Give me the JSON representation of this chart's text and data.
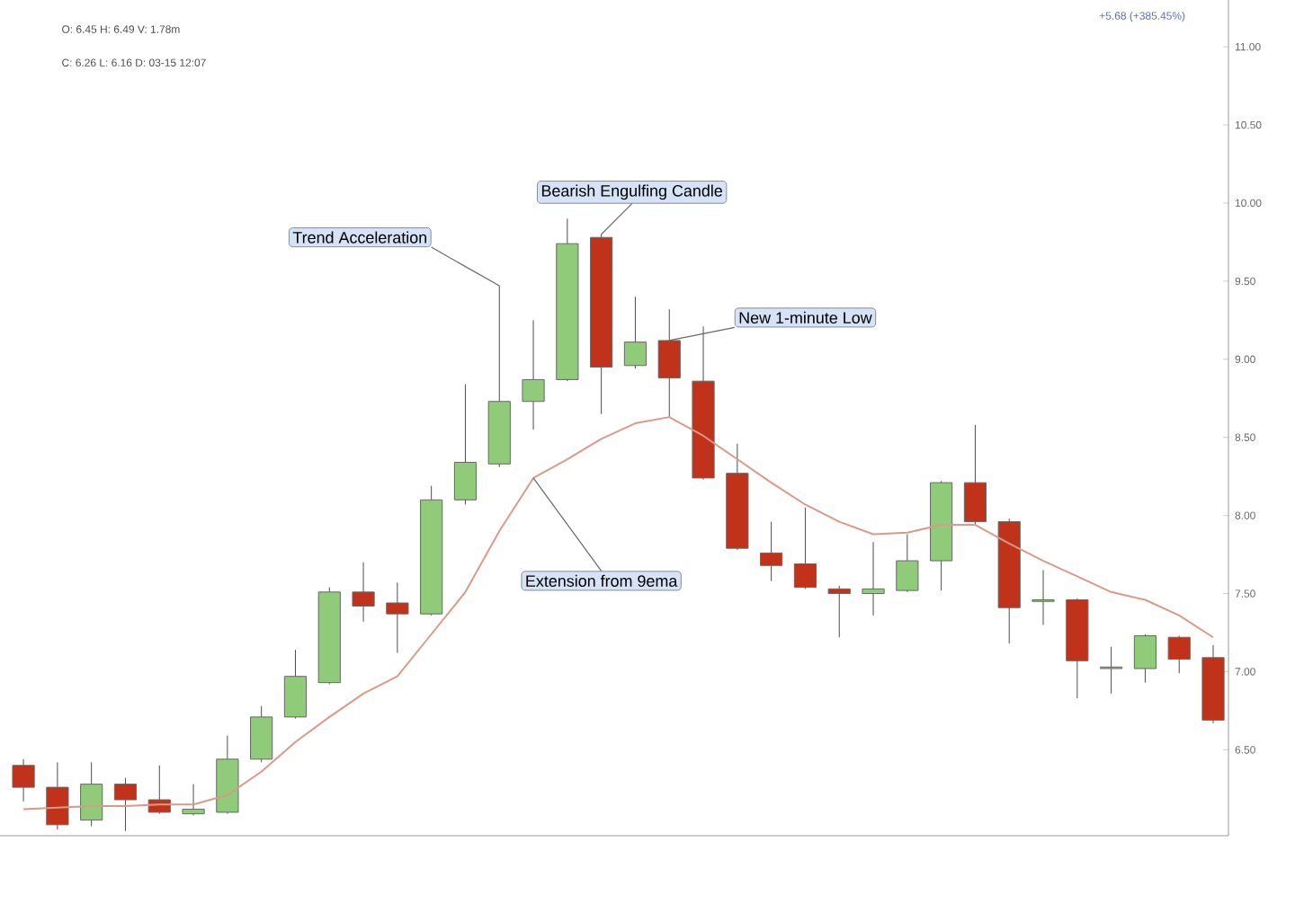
{
  "chart_data": {
    "type": "candlestick",
    "tick_labels": "y",
    "categories": [
      null,
      null,
      null,
      null,
      null,
      null,
      null,
      null,
      null,
      null,
      null,
      null,
      null,
      null,
      null,
      null,
      null,
      null,
      null,
      null,
      null,
      null,
      null,
      null,
      null,
      null,
      null,
      null,
      null,
      null,
      null,
      null,
      null,
      null,
      null,
      null
    ],
    "ohlc": [
      [
        6.4,
        6.44,
        6.17,
        6.26
      ],
      [
        6.26,
        6.42,
        5.99,
        6.02
      ],
      [
        6.05,
        6.42,
        6.01,
        6.28
      ],
      [
        6.28,
        6.32,
        5.98,
        6.18
      ],
      [
        6.18,
        6.4,
        6.09,
        6.1
      ],
      [
        6.09,
        6.28,
        6.08,
        6.12
      ],
      [
        6.1,
        6.59,
        6.09,
        6.44
      ],
      [
        6.44,
        6.78,
        6.42,
        6.71
      ],
      [
        6.71,
        7.14,
        6.7,
        6.97
      ],
      [
        6.93,
        7.54,
        6.92,
        7.51
      ],
      [
        7.51,
        7.7,
        7.32,
        7.42
      ],
      [
        7.44,
        7.57,
        7.12,
        7.37
      ],
      [
        7.37,
        8.19,
        7.36,
        8.1
      ],
      [
        8.1,
        8.84,
        8.07,
        8.34
      ],
      [
        8.33,
        9.47,
        8.31,
        8.73
      ],
      [
        8.73,
        9.25,
        8.55,
        8.87
      ],
      [
        8.87,
        9.9,
        8.86,
        9.74
      ],
      [
        9.78,
        9.8,
        8.65,
        8.95
      ],
      [
        8.96,
        9.4,
        8.94,
        9.11
      ],
      [
        9.12,
        9.32,
        8.63,
        8.88
      ],
      [
        8.86,
        9.21,
        8.23,
        8.24
      ],
      [
        8.27,
        8.46,
        7.78,
        7.79
      ],
      [
        7.76,
        7.96,
        7.58,
        7.68
      ],
      [
        7.69,
        8.05,
        7.53,
        7.54
      ],
      [
        7.53,
        7.55,
        7.22,
        7.5
      ],
      [
        7.5,
        7.83,
        7.36,
        7.53
      ],
      [
        7.52,
        7.88,
        7.51,
        7.71
      ],
      [
        7.71,
        8.22,
        7.52,
        8.21
      ],
      [
        8.21,
        8.58,
        7.94,
        7.96
      ],
      [
        7.96,
        7.98,
        7.18,
        7.41
      ],
      [
        7.45,
        7.65,
        7.3,
        7.46
      ],
      [
        7.46,
        7.47,
        6.83,
        7.07
      ],
      [
        7.03,
        7.16,
        6.86,
        7.02
      ],
      [
        7.02,
        7.24,
        6.93,
        7.23
      ],
      [
        7.22,
        7.23,
        6.99,
        7.08
      ],
      [
        7.09,
        7.17,
        6.67,
        6.69
      ]
    ],
    "colors": [
      "#c0321a",
      "#c0321a",
      "#8fcb78",
      "#c0321a",
      "#c0321a",
      "#8fcb78",
      "#8fcb78",
      "#8fcb78",
      "#8fcb78",
      "#8fcb78",
      "#c0321a",
      "#c0321a",
      "#8fcb78",
      "#8fcb78",
      "#8fcb78",
      "#8fcb78",
      "#8fcb78",
      "#c0321a",
      "#8fcb78",
      "#c0321a",
      "#c0321a",
      "#c0321a",
      "#c0321a",
      "#c0321a",
      "#c0321a",
      "#8fcb78",
      "#8fcb78",
      "#8fcb78",
      "#c0321a",
      "#c0321a",
      "#8fcb78",
      "#c0321a",
      "#8fcb78",
      "#8fcb78",
      "#c0321a",
      "#c0321a"
    ],
    "series": [
      {
        "type": "line",
        "color": "#d99a88",
        "values": [
          6.12,
          6.13,
          6.14,
          6.14,
          6.15,
          6.15,
          6.21,
          6.36,
          6.55,
          6.71,
          6.86,
          6.97,
          7.24,
          7.51,
          7.9,
          8.24,
          8.36,
          8.49,
          8.59,
          8.63,
          8.51,
          8.36,
          8.21,
          8.07,
          7.96,
          7.88,
          7.89,
          7.94,
          7.94,
          7.82,
          7.71,
          7.61,
          7.51,
          7.46,
          7.36,
          7.22
        ]
      }
    ],
    "ylim": [
      5.95,
      11.3
    ],
    "yticks": [
      {
        "value": 6.5,
        "label": "6.50"
      },
      {
        "value": 7,
        "label": "7.00"
      },
      {
        "value": 7.5,
        "label": "7.50"
      },
      {
        "value": 8,
        "label": "8.00"
      },
      {
        "value": 8.5,
        "label": "8.50"
      },
      {
        "value": 9,
        "label": "9.00"
      },
      {
        "value": 9.5,
        "label": "9.50"
      },
      {
        "value": 10,
        "label": "10.00"
      },
      {
        "value": 10.5,
        "label": "10.50"
      },
      {
        "value": 11,
        "label": "11.00"
      }
    ],
    "annotations": [
      "Trend Acceleration",
      "Bearish Engulfing Candle",
      "New 1-minute Low",
      "Extension from 9ema",
      "O: 6.45 H: 6.49 V: 1.78m",
      "C: 6.26 L: 6.16 D: 03-15 12:07",
      "+5.68 (+385.45%)"
    ]
  }
}
